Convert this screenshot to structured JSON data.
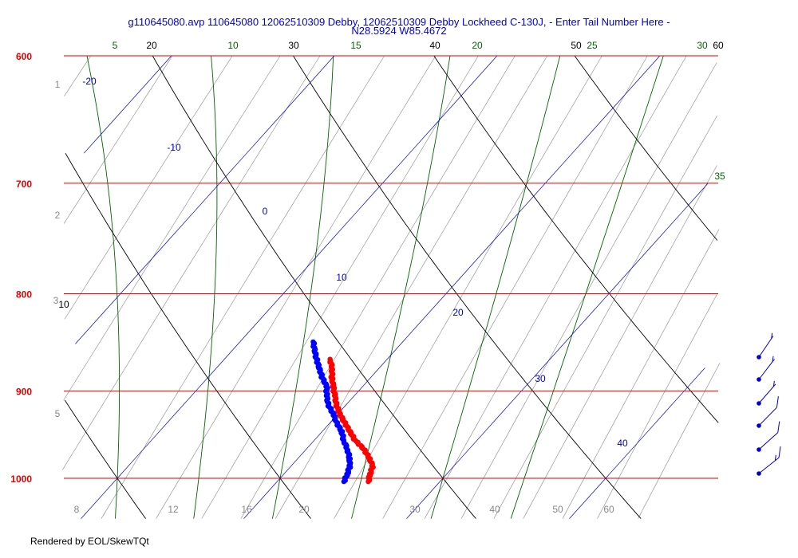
{
  "window": {
    "title_line1": "g110645080.avp 110645080 12062510309 Debby, 12062510309 Debby Lockheed C-130J, - Enter Tail Number Here -",
    "title_line2": "N28.5924 W85.4672",
    "credit": "Rendered by EOL/SkewTQt"
  },
  "chart_data": {
    "type": "line",
    "chart_kind": "skew-T log-P diagram",
    "title": "g110645080.avp 110645080 12062510309 Debby, 12062510309 Debby Lockheed C-130J, - Enter Tail Number Here - N28.5924 W85.4672",
    "pressure_range_hPa": [
      1050,
      600
    ],
    "isobars_hPa": [
      600,
      700,
      800,
      900,
      1000
    ],
    "isotherm_labels_C": [
      "-20",
      "-10",
      "0",
      "10",
      "20",
      "30",
      "40"
    ],
    "dry_adiabat_labels_C": [
      "20",
      "30",
      "40",
      "50",
      "60",
      "10"
    ],
    "moist_adiabat_labels_C": [
      "5",
      "10",
      "15",
      "20",
      "25",
      "30",
      "35"
    ],
    "mixing_ratio_labels_gkg": [
      "8",
      "12",
      "16",
      "20",
      "30",
      "40",
      "50",
      "60"
    ],
    "height_labels_km": [
      "1",
      "2",
      "3",
      "5"
    ],
    "colors": {
      "isobar": "#e00000",
      "isotherm": "#0000cc",
      "dry_adiabat": "#000000",
      "moist_adiabat": "#006600",
      "mixing_ratio": "#888888",
      "temperature": "#ff0000",
      "dewpoint": "#0000ff",
      "wind_barb": "#0000cc",
      "title": "#0000cc"
    },
    "series": [
      {
        "name": "Temperature",
        "color": "#ff0000",
        "points": [
          [
            1004,
            25.6
          ],
          [
            995,
            25.3
          ],
          [
            985,
            25.0
          ],
          [
            975,
            24.3
          ],
          [
            965,
            23.5
          ],
          [
            955,
            22.5
          ],
          [
            945,
            21.7
          ],
          [
            935,
            20.9
          ],
          [
            925,
            20.1
          ],
          [
            915,
            19.4
          ],
          [
            905,
            18.8
          ],
          [
            895,
            18.2
          ],
          [
            885,
            17.6
          ],
          [
            875,
            17.1
          ],
          [
            866,
            16.5
          ]
        ]
      },
      {
        "name": "Dewpoint",
        "color": "#0000ff",
        "points": [
          [
            1004,
            24.1
          ],
          [
            995,
            23.9
          ],
          [
            985,
            23.6
          ],
          [
            975,
            23.1
          ],
          [
            965,
            22.5
          ],
          [
            955,
            21.8
          ],
          [
            945,
            21.2
          ],
          [
            935,
            20.4
          ],
          [
            925,
            19.7
          ],
          [
            915,
            18.9
          ],
          [
            905,
            18.3
          ],
          [
            895,
            17.8
          ],
          [
            885,
            17.0
          ],
          [
            875,
            16.3
          ],
          [
            865,
            15.6
          ],
          [
            848,
            14.5
          ]
        ]
      }
    ],
    "wind_barbs": [
      {
        "pressure_hPa": 1000,
        "speed_kt": 15,
        "direction_deg": 200
      },
      {
        "pressure_hPa": 975,
        "speed_kt": 10,
        "direction_deg": 210
      },
      {
        "pressure_hPa": 950,
        "speed_kt": 10,
        "direction_deg": 220
      },
      {
        "pressure_hPa": 925,
        "speed_kt": 5,
        "direction_deg": 230
      },
      {
        "pressure_hPa": 900,
        "speed_kt": 5,
        "direction_deg": 240
      },
      {
        "pressure_hPa": 875,
        "speed_kt": 5,
        "direction_deg": 250
      }
    ]
  }
}
